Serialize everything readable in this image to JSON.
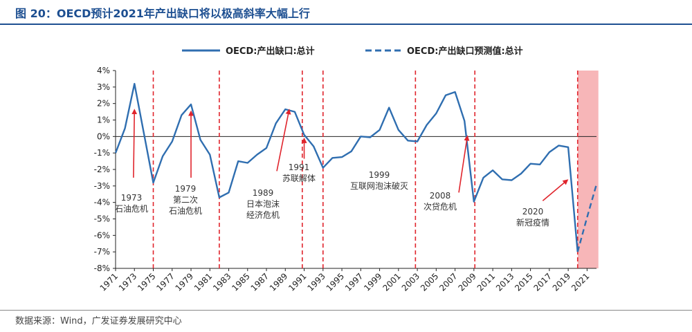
{
  "title": "图 20：OECD预计2021年产出缺口将以极高斜率大幅上行",
  "source": "数据来源：Wind，广发证券发展研究中心",
  "colors": {
    "series": "#2f6eb0",
    "recession_line": "#e0242c",
    "arrow": "#e0242c",
    "shade": "#f7b6b8",
    "rule": "#1d4f91"
  },
  "chart_data": {
    "type": "line",
    "title": "",
    "xlabel": "",
    "ylabel": "",
    "ylim": [
      -8,
      4
    ],
    "xlim": [
      1971,
      2022
    ],
    "y_ticks": [
      "4%",
      "3%",
      "2%",
      "1%",
      "0%",
      "-1%",
      "-2%",
      "-3%",
      "-4%",
      "-5%",
      "-6%",
      "-7%",
      "-8%"
    ],
    "x_ticks": [
      "1971",
      "1973",
      "1975",
      "1977",
      "1979",
      "1981",
      "1983",
      "1985",
      "1987",
      "1989",
      "1991",
      "1993",
      "1995",
      "1997",
      "1999",
      "2001",
      "2003",
      "2005",
      "2007",
      "2009",
      "2011",
      "2013",
      "2015",
      "2017",
      "2019",
      "2021"
    ],
    "legend": {
      "placement": "top",
      "entries": [
        "OECD:产出缺口:总计",
        "OECD:产出缺口预测值:总计"
      ]
    },
    "series": [
      {
        "name": "OECD:产出缺口:总计",
        "style": "solid",
        "x": [
          1971,
          1972,
          1973,
          1974,
          1975,
          1976,
          1977,
          1978,
          1979,
          1980,
          1981,
          1982,
          1983,
          1984,
          1985,
          1986,
          1987,
          1988,
          1989,
          1990,
          1991,
          1992,
          1993,
          1994,
          1995,
          1996,
          1997,
          1998,
          1999,
          2000,
          2001,
          2002,
          2003,
          2004,
          2005,
          2006,
          2007,
          2008,
          2009,
          2010,
          2011,
          2012,
          2013,
          2014,
          2015,
          2016,
          2017,
          2018,
          2019,
          2020
        ],
        "values": [
          -1.0,
          0.5,
          3.2,
          0.2,
          -2.8,
          -1.2,
          -0.3,
          1.3,
          1.95,
          -0.2,
          -1.1,
          -3.7,
          -3.4,
          -1.5,
          -1.6,
          -1.1,
          -0.7,
          0.8,
          1.65,
          1.5,
          0.1,
          -0.6,
          -1.9,
          -1.3,
          -1.25,
          -0.9,
          0.0,
          -0.05,
          0.4,
          1.75,
          0.4,
          -0.25,
          -0.3,
          0.7,
          1.4,
          2.5,
          2.7,
          0.95,
          -3.95,
          -2.5,
          -2.05,
          -2.6,
          -2.65,
          -2.25,
          -1.65,
          -1.7,
          -0.95,
          -0.55,
          -0.65,
          -7.0
        ]
      },
      {
        "name": "OECD:产出缺口预测值:总计",
        "style": "dashed",
        "x": [
          2020,
          2021,
          2022
        ],
        "values": [
          -7.0,
          -4.9,
          -2.9
        ]
      }
    ],
    "recession_markers": [
      1975,
      1982,
      1990.8,
      1993,
      2002.8,
      2009.1,
      2020
    ],
    "forecast_shade": [
      2020,
      2022.2
    ],
    "annotations": [
      {
        "lines": [
          "1973",
          "石油危机"
        ],
        "arrow_from_x": 1972.9,
        "arrow_from_y": -2.5,
        "arrow_to_x": 1973.0,
        "arrow_to_y": 1.6
      },
      {
        "lines": [
          "1979",
          "第二次",
          "石油危机"
        ],
        "arrow_from_x": 1979.0,
        "arrow_from_y": -2.5,
        "arrow_to_x": 1979.0,
        "arrow_to_y": 1.5
      },
      {
        "lines": [
          "1989",
          "日本泡沫",
          "经济危机"
        ],
        "arrow_from_x": 1988.1,
        "arrow_from_y": -2.1,
        "arrow_to_x": 1989.4,
        "arrow_to_y": 1.6
      },
      {
        "lines": [
          "1991",
          "苏联解体"
        ],
        "arrow_from_x": 1991.0,
        "arrow_from_y": -1.35,
        "arrow_to_x": 1991.0,
        "arrow_to_y": -0.15
      },
      {
        "lines": [
          "1999",
          "互联网泡沫破灭"
        ],
        "arrow_from_x": 1999.6,
        "arrow_from_y": -1.8,
        "arrow_to_x": 1999.6,
        "arrow_to_y": -1.8
      },
      {
        "lines": [
          "2008",
          "次贷危机"
        ],
        "arrow_from_x": 2007.4,
        "arrow_from_y": -3.4,
        "arrow_to_x": 2008.3,
        "arrow_to_y": 0.0
      },
      {
        "lines": [
          "2020",
          "新冠疫情"
        ],
        "arrow_from_x": 2016.3,
        "arrow_from_y": -3.9,
        "arrow_to_x": 2018.9,
        "arrow_to_y": -2.65
      }
    ]
  }
}
